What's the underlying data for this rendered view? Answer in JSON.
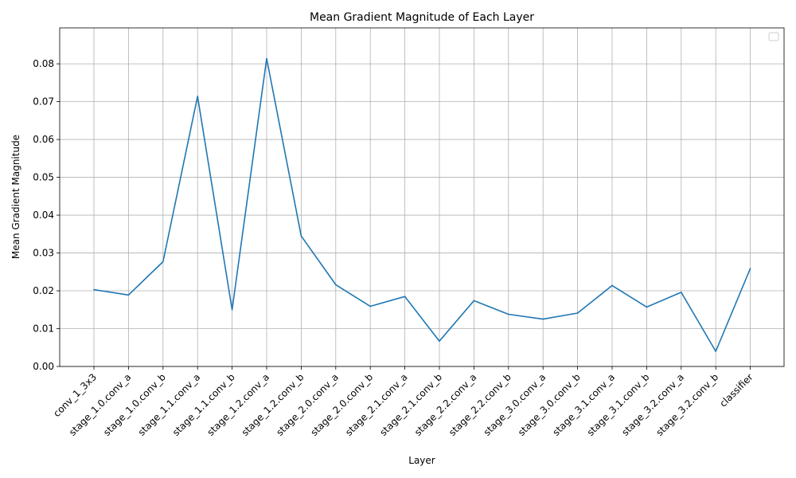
{
  "chart_data": {
    "type": "line",
    "title": "Mean Gradient Magnitude of Each Layer",
    "xlabel": "Layer",
    "ylabel": "Mean Gradient Magnitude",
    "categories": [
      "conv_1_3x3",
      "stage_1.0.conv_a",
      "stage_1.0.conv_b",
      "stage_1.1.conv_a",
      "stage_1.1.conv_b",
      "stage_1.2.conv_a",
      "stage_1.2.conv_b",
      "stage_2.0.conv_a",
      "stage_2.0.conv_b",
      "stage_2.1.conv_a",
      "stage_2.1.conv_b",
      "stage_2.2.conv_a",
      "stage_2.2.conv_b",
      "stage_3.0.conv_a",
      "stage_3.0.conv_b",
      "stage_3.1.conv_a",
      "stage_3.1.conv_b",
      "stage_3.2.conv_a",
      "stage_3.2.conv_b",
      "classifier"
    ],
    "values": [
      0.0203,
      0.0189,
      0.0277,
      0.0714,
      0.015,
      0.0814,
      0.0345,
      0.0216,
      0.0159,
      0.0185,
      0.0067,
      0.0174,
      0.0138,
      0.0125,
      0.0141,
      0.0214,
      0.0157,
      0.0196,
      0.004,
      0.0259
    ],
    "ylim": [
      0,
      0.0895
    ],
    "yticks": [
      "0.00",
      "0.01",
      "0.02",
      "0.03",
      "0.04",
      "0.05",
      "0.06",
      "0.07",
      "0.08"
    ],
    "ytick_values": [
      0,
      0.01,
      0.02,
      0.03,
      0.04,
      0.05,
      0.06,
      0.07,
      0.08
    ],
    "grid": true,
    "legend": "top-right (empty)",
    "line_color": "#1f77b4"
  }
}
